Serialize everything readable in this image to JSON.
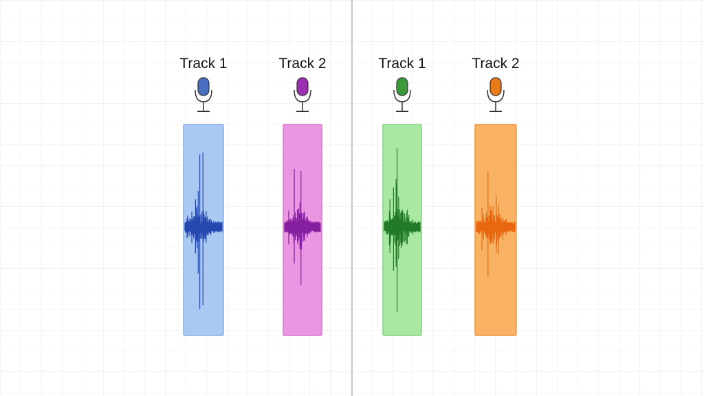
{
  "tracks": [
    {
      "label": "Track 1"
    },
    {
      "label": "Track 2"
    },
    {
      "label": "Track 1"
    },
    {
      "label": "Track 2"
    }
  ]
}
